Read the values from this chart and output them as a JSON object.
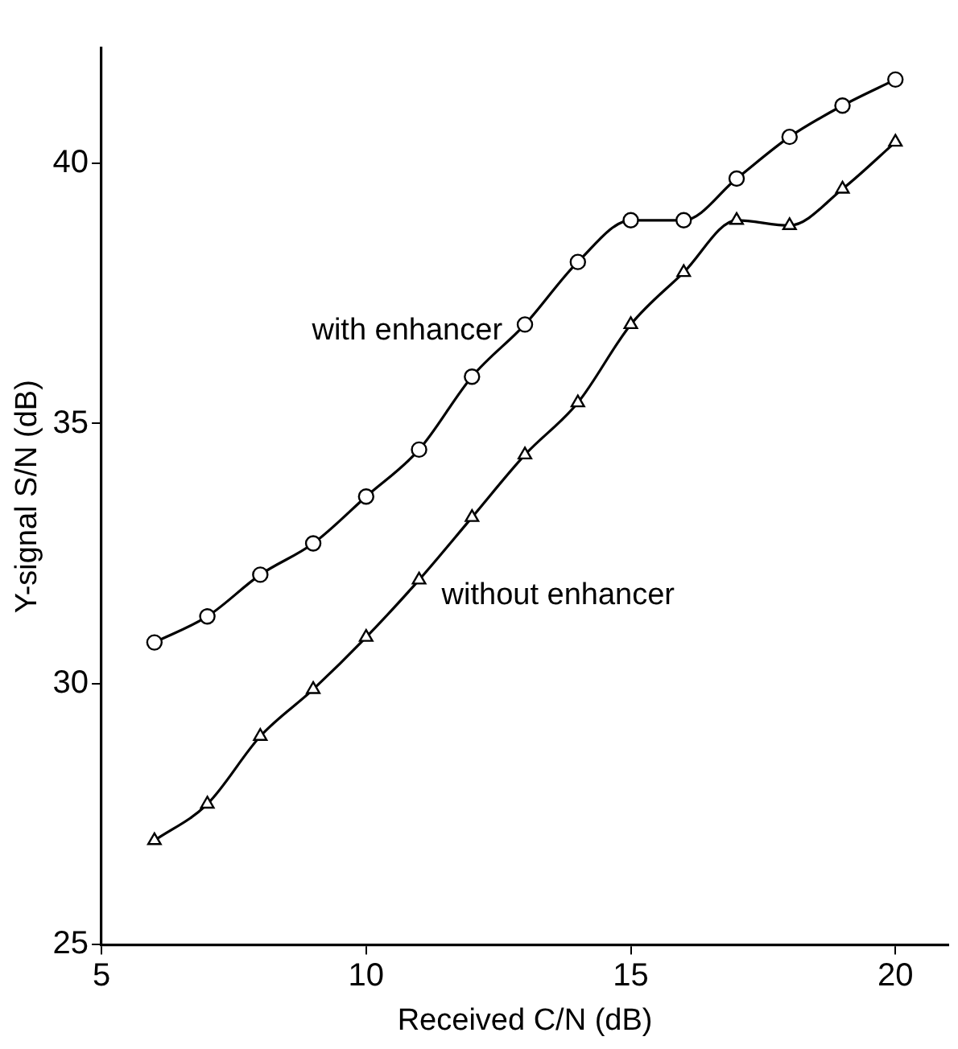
{
  "chart_data": {
    "type": "line",
    "xlabel": "Received C/N (dB)",
    "ylabel": "Y-signal S/N (dB)",
    "xlim": [
      5,
      21
    ],
    "xticks": [
      5,
      10,
      15,
      20
    ],
    "ylim": [
      25,
      42.2
    ],
    "yticks": [
      25,
      30,
      35,
      40
    ],
    "grid": false,
    "legend": false,
    "series": [
      {
        "name": "with enhancer",
        "color": "#000000",
        "marker": "circle",
        "x": [
          6,
          7,
          8,
          9,
          10,
          11,
          12,
          13,
          14,
          15,
          16,
          17,
          18,
          19,
          20
        ],
        "values": [
          30.8,
          31.3,
          32.1,
          32.7,
          33.6,
          34.5,
          35.9,
          36.9,
          38.1,
          38.9,
          38.9,
          39.7,
          40.5,
          41.1,
          41.6
        ]
      },
      {
        "name": "without enhancer",
        "color": "#000000",
        "marker": "triangle",
        "x": [
          6,
          7,
          8,
          9,
          10,
          11,
          12,
          13,
          14,
          15,
          16,
          17,
          18,
          19,
          20
        ],
        "values": [
          27.0,
          27.7,
          29.0,
          29.9,
          30.9,
          32.0,
          33.2,
          34.4,
          35.4,
          36.9,
          37.9,
          38.9,
          38.8,
          39.5,
          40.4
        ]
      }
    ]
  }
}
